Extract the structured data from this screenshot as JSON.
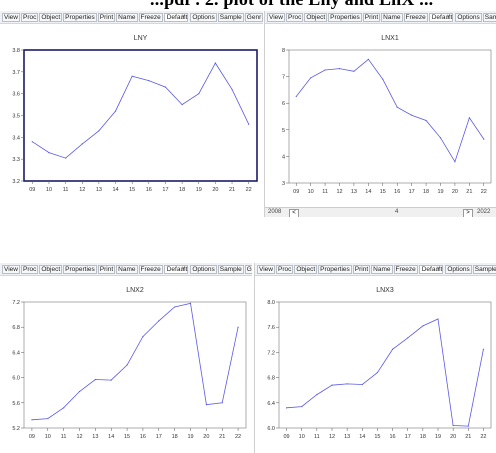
{
  "page_heading": "...pdf . 2. plot of the Lny and LnX ...",
  "toolbar": {
    "buttons": [
      "View",
      "Proc",
      "Object",
      "Properties",
      "Print",
      "Name",
      "Freeze"
    ],
    "dropdown_value": "Default",
    "right_buttons": [
      "Options",
      "Sample",
      "Genr"
    ]
  },
  "status_bar": {
    "left_value": "2008",
    "middle_value": "4",
    "right_value": "2022"
  },
  "charts": [
    {
      "title": "LNY",
      "categories": [
        "09",
        "10",
        "11",
        "12",
        "13",
        "14",
        "15",
        "16",
        "17",
        "18",
        "19",
        "20",
        "21",
        "22"
      ],
      "values": [
        3.38,
        3.33,
        3.305,
        3.37,
        3.43,
        3.52,
        3.68,
        3.66,
        3.63,
        3.55,
        3.6,
        3.74,
        3.62,
        3.46
      ],
      "ylim": [
        3.2,
        3.8
      ],
      "yticks": [
        "3.2",
        "3.3",
        "3.4",
        "3.5",
        "3.6",
        "3.7",
        "3.8"
      ],
      "line_color": "#5a5ae6",
      "frame_color": "#1c1c6a"
    },
    {
      "title": "LNX1",
      "categories": [
        "09",
        "10",
        "11",
        "12",
        "13",
        "14",
        "15",
        "16",
        "17",
        "18",
        "19",
        "20",
        "21",
        "22"
      ],
      "values": [
        6.25,
        6.95,
        7.25,
        7.3,
        7.2,
        7.65,
        6.9,
        5.85,
        5.55,
        5.35,
        4.7,
        3.8,
        5.45,
        4.65
      ],
      "ylim": [
        3,
        8
      ],
      "yticks": [
        "3",
        "4",
        "5",
        "6",
        "7",
        "8"
      ],
      "line_color": "#5a5ae6",
      "frame_color": "#777777"
    },
    {
      "title": "LNX2",
      "categories": [
        "09",
        "10",
        "11",
        "12",
        "13",
        "14",
        "15",
        "16",
        "17",
        "18",
        "19",
        "20",
        "21",
        "22"
      ],
      "values": [
        5.33,
        5.35,
        5.52,
        5.78,
        5.97,
        5.96,
        6.2,
        6.65,
        6.9,
        7.12,
        7.18,
        5.57,
        5.6,
        6.8
      ],
      "ylim": [
        5.2,
        7.2
      ],
      "yticks": [
        "5.2",
        "5.6",
        "6.0",
        "6.4",
        "6.8",
        "7.2"
      ],
      "line_color": "#5a5ae6",
      "frame_color": "#777777"
    },
    {
      "title": "LNX3",
      "categories": [
        "09",
        "10",
        "11",
        "12",
        "13",
        "14",
        "15",
        "16",
        "17",
        "18",
        "19",
        "20",
        "21",
        "22"
      ],
      "values": [
        6.32,
        6.34,
        6.53,
        6.68,
        6.7,
        6.69,
        6.88,
        7.25,
        7.43,
        7.62,
        7.73,
        6.04,
        6.03,
        7.25
      ],
      "ylim": [
        6.0,
        8.0
      ],
      "yticks": [
        "6.0",
        "6.4",
        "6.8",
        "7.2",
        "7.6",
        "8.0"
      ],
      "line_color": "#5a5ae6",
      "frame_color": "#777777"
    }
  ],
  "chart_data": [
    {
      "type": "line",
      "title": "LNY",
      "categories": [
        "09",
        "10",
        "11",
        "12",
        "13",
        "14",
        "15",
        "16",
        "17",
        "18",
        "19",
        "20",
        "21",
        "22"
      ],
      "values": [
        3.38,
        3.33,
        3.305,
        3.37,
        3.43,
        3.52,
        3.68,
        3.66,
        3.63,
        3.55,
        3.6,
        3.74,
        3.62,
        3.46
      ],
      "ylim": [
        3.2,
        3.8
      ]
    },
    {
      "type": "line",
      "title": "LNX1",
      "categories": [
        "09",
        "10",
        "11",
        "12",
        "13",
        "14",
        "15",
        "16",
        "17",
        "18",
        "19",
        "20",
        "21",
        "22"
      ],
      "values": [
        6.25,
        6.95,
        7.25,
        7.3,
        7.2,
        7.65,
        6.9,
        5.85,
        5.55,
        5.35,
        4.7,
        3.8,
        5.45,
        4.65
      ],
      "ylim": [
        3,
        8
      ]
    },
    {
      "type": "line",
      "title": "LNX2",
      "categories": [
        "09",
        "10",
        "11",
        "12",
        "13",
        "14",
        "15",
        "16",
        "17",
        "18",
        "19",
        "20",
        "21",
        "22"
      ],
      "values": [
        5.33,
        5.35,
        5.52,
        5.78,
        5.97,
        5.96,
        6.2,
        6.65,
        6.9,
        7.12,
        7.18,
        5.57,
        5.6,
        6.8
      ],
      "ylim": [
        5.2,
        7.2
      ]
    },
    {
      "type": "line",
      "title": "LNX3",
      "categories": [
        "09",
        "10",
        "11",
        "12",
        "13",
        "14",
        "15",
        "16",
        "17",
        "18",
        "19",
        "20",
        "21",
        "22"
      ],
      "values": [
        6.32,
        6.34,
        6.53,
        6.68,
        6.7,
        6.69,
        6.88,
        7.25,
        7.43,
        7.62,
        7.73,
        6.04,
        6.03,
        7.25
      ],
      "ylim": [
        6.0,
        8.0
      ]
    }
  ]
}
